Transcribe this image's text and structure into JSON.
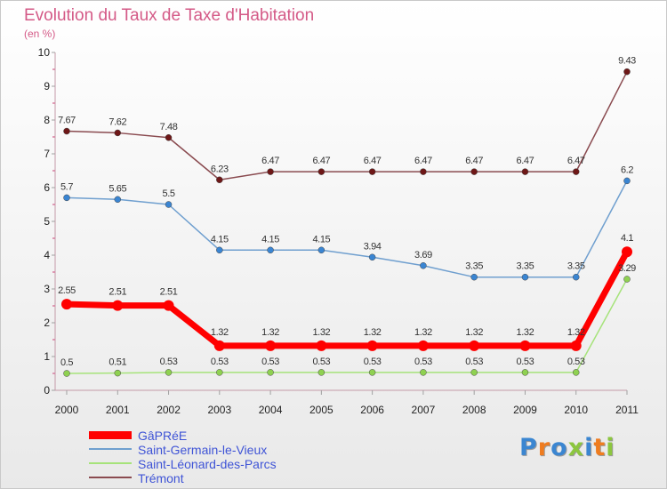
{
  "title": "Evolution du Taux de Taxe d'Habitation",
  "subtitle": "(en %)",
  "logo": {
    "text": "Proxiti",
    "letter_colors": [
      "#3b86d1",
      "#ef7c1f",
      "#3b86d1",
      "#8cc63f",
      "#3b86d1",
      "#ef7c1f",
      "#8cc63f"
    ]
  },
  "chart_data": {
    "type": "line",
    "title": "Evolution du Taux de Taxe d'Habitation",
    "ylabel": "(en %)",
    "xlabel": "",
    "x": [
      "2000",
      "2001",
      "2002",
      "2003",
      "2004",
      "2005",
      "2006",
      "2007",
      "2008",
      "2009",
      "2010",
      "2011"
    ],
    "ylim": [
      0,
      10
    ],
    "yticks": [
      "0",
      "1",
      "2",
      "3",
      "4",
      "5",
      "6",
      "7",
      "8",
      "9",
      "10"
    ],
    "grid": false,
    "legend_position": "bottom-left",
    "series": [
      {
        "name": "GâPRéE",
        "color": "#ff0000",
        "marker": "#ff0000",
        "width": 7,
        "radius": 6,
        "values": [
          2.55,
          2.51,
          2.51,
          1.32,
          1.32,
          1.32,
          1.32,
          1.32,
          1.32,
          1.32,
          1.32,
          4.1
        ],
        "labels": [
          "2.55",
          "2.51",
          "2.51",
          "1.32",
          "1.32",
          "1.32",
          "1.32",
          "1.32",
          "1.32",
          "1.32",
          "1.32",
          "4.1"
        ]
      },
      {
        "name": "Saint-Germain-le-Vieux",
        "color": "#6f9fcf",
        "marker": "#3a85d2",
        "width": 1.5,
        "radius": 3.5,
        "values": [
          5.7,
          5.65,
          5.5,
          4.15,
          4.15,
          4.15,
          3.94,
          3.69,
          3.35,
          3.35,
          3.35,
          6.2
        ],
        "labels": [
          "5.7",
          "5.65",
          "5.5",
          "4.15",
          "4.15",
          "4.15",
          "3.94",
          "3.69",
          "3.35",
          "3.35",
          "3.35",
          "6.2"
        ]
      },
      {
        "name": "Saint-Léonard-des-Parcs",
        "color": "#a6e37a",
        "marker": "#8fd151",
        "width": 1.5,
        "radius": 3.5,
        "values": [
          0.5,
          0.51,
          0.53,
          0.53,
          0.53,
          0.53,
          0.53,
          0.53,
          0.53,
          0.53,
          0.53,
          3.29
        ],
        "labels": [
          "0.5",
          "0.51",
          "0.53",
          "0.53",
          "0.53",
          "0.53",
          "0.53",
          "0.53",
          "0.53",
          "0.53",
          "0.53",
          "3.29"
        ]
      },
      {
        "name": "Trémont",
        "color": "#8a4b50",
        "marker": "#6e1717",
        "width": 1.5,
        "radius": 3.5,
        "values": [
          7.67,
          7.62,
          7.48,
          6.23,
          6.47,
          6.47,
          6.47,
          6.47,
          6.47,
          6.47,
          6.47,
          9.43
        ],
        "labels": [
          "7.67",
          "7.62",
          "7.48",
          "6.23",
          "6.47",
          "6.47",
          "6.47",
          "6.47",
          "6.47",
          "6.47",
          "6.47",
          "9.43"
        ]
      }
    ]
  }
}
